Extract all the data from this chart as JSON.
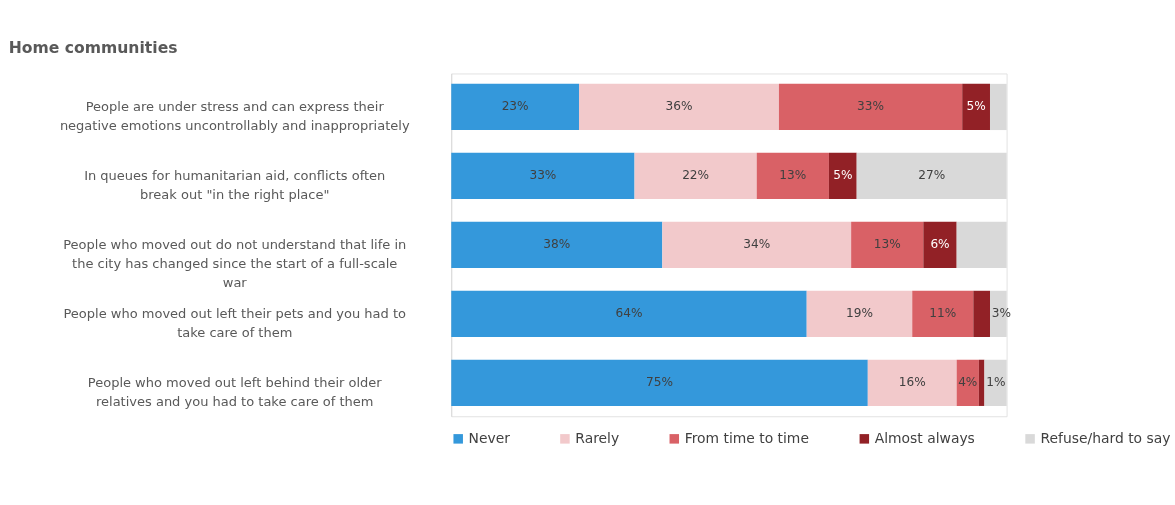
{
  "chart_data": {
    "type": "bar",
    "orientation": "horizontal",
    "stacked": true,
    "title": "Home communities",
    "categories": [
      "People are under stress and can express their negative emotions uncontrollably and inappropriately",
      "In queues for humanitarian aid, conflicts often break out \"in the right place\"",
      "People who moved out do not understand that life in the city has changed since the start of a full-scale war",
      "People who moved out left their pets and you had to take care of them",
      "People who moved out left behind their older relatives and you had to take care of them"
    ],
    "series": [
      {
        "name": "Never",
        "color": "#3498db",
        "values": [
          23,
          33,
          38,
          64,
          75
        ],
        "value_labels": [
          "23%",
          "33%",
          "38%",
          "64%",
          "75%"
        ]
      },
      {
        "name": "Rarely",
        "color": "#f2c9cb",
        "values": [
          36,
          22,
          34,
          19,
          16
        ],
        "value_labels": [
          "36%",
          "22%",
          "34%",
          "19%",
          "16%"
        ]
      },
      {
        "name": "From time to time",
        "color": "#d96166",
        "values": [
          33,
          13,
          13,
          11,
          4
        ],
        "value_labels": [
          "33%",
          "13%",
          "13%",
          "11%",
          "4%"
        ]
      },
      {
        "name": "Almost always",
        "color": "#922126",
        "values": [
          5,
          5,
          6,
          3,
          1
        ],
        "value_labels": [
          "5%",
          "5%",
          "6%",
          "3%",
          "1%"
        ]
      },
      {
        "name": "Refuse/hard to say",
        "color": "#d9d9d9",
        "values": [
          3,
          27,
          9,
          3,
          4
        ],
        "value_labels": [
          null,
          "27%",
          null,
          null,
          null
        ]
      }
    ],
    "legend": "bottom",
    "grid": false
  }
}
